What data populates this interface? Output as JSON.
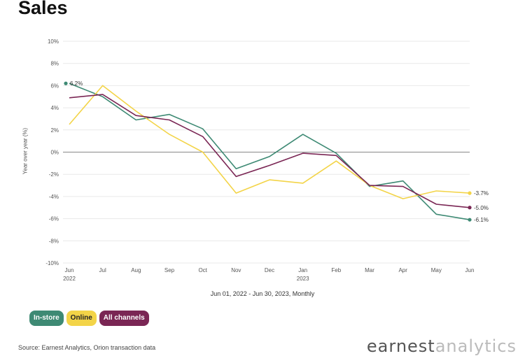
{
  "title": "Sales",
  "period_label": "Jun 01, 2022 - Jun 30, 2023, Monthly",
  "legend": {
    "instore": "In-store",
    "online": "Online",
    "all": "All channels"
  },
  "source": "Source: Earnest Analytics, Orion transaction data",
  "logo": {
    "part1": "earnest",
    "part2": "analytics"
  },
  "colors": {
    "instore": "#3e8a74",
    "online": "#f3d448",
    "all": "#7a2654",
    "grid": "#e9e9e9",
    "zero": "#888888"
  },
  "chart_data": {
    "type": "line",
    "title": "Sales",
    "xlabel": "Jun 01, 2022 - Jun 30, 2023, Monthly",
    "ylabel": "Year over year (%)",
    "ylim": [
      -10,
      10
    ],
    "yticks": [
      "10%",
      "8%",
      "6%",
      "4%",
      "2%",
      "0%",
      "-2%",
      "-4%",
      "-6%",
      "-8%",
      "-10%"
    ],
    "categories": [
      "Jun",
      "Jul",
      "Aug",
      "Sep",
      "Oct",
      "Nov",
      "Dec",
      "Jan",
      "Feb",
      "Mar",
      "Apr",
      "May",
      "Jun"
    ],
    "year_labels": {
      "0": "2022",
      "7": "2023"
    },
    "grid": true,
    "series": [
      {
        "name": "In-store",
        "key": "instore",
        "values": [
          6.2,
          5.0,
          2.9,
          3.4,
          2.1,
          -1.5,
          -0.4,
          1.6,
          -0.1,
          -3.1,
          -2.6,
          -5.6,
          -6.1
        ],
        "start_label": "6.2%",
        "end_label": "-6.1%"
      },
      {
        "name": "Online",
        "key": "online",
        "values": [
          2.5,
          6.0,
          3.7,
          1.6,
          0.0,
          -3.7,
          -2.5,
          -2.8,
          -0.8,
          -3.0,
          -4.2,
          -3.5,
          -3.7
        ],
        "end_label": "-3.7%"
      },
      {
        "name": "All channels",
        "key": "all",
        "values": [
          4.9,
          5.2,
          3.3,
          2.9,
          1.4,
          -2.2,
          -1.2,
          -0.1,
          -0.3,
          -3.0,
          -3.1,
          -4.7,
          -5.0
        ],
        "end_label": "-5.0%"
      }
    ]
  }
}
